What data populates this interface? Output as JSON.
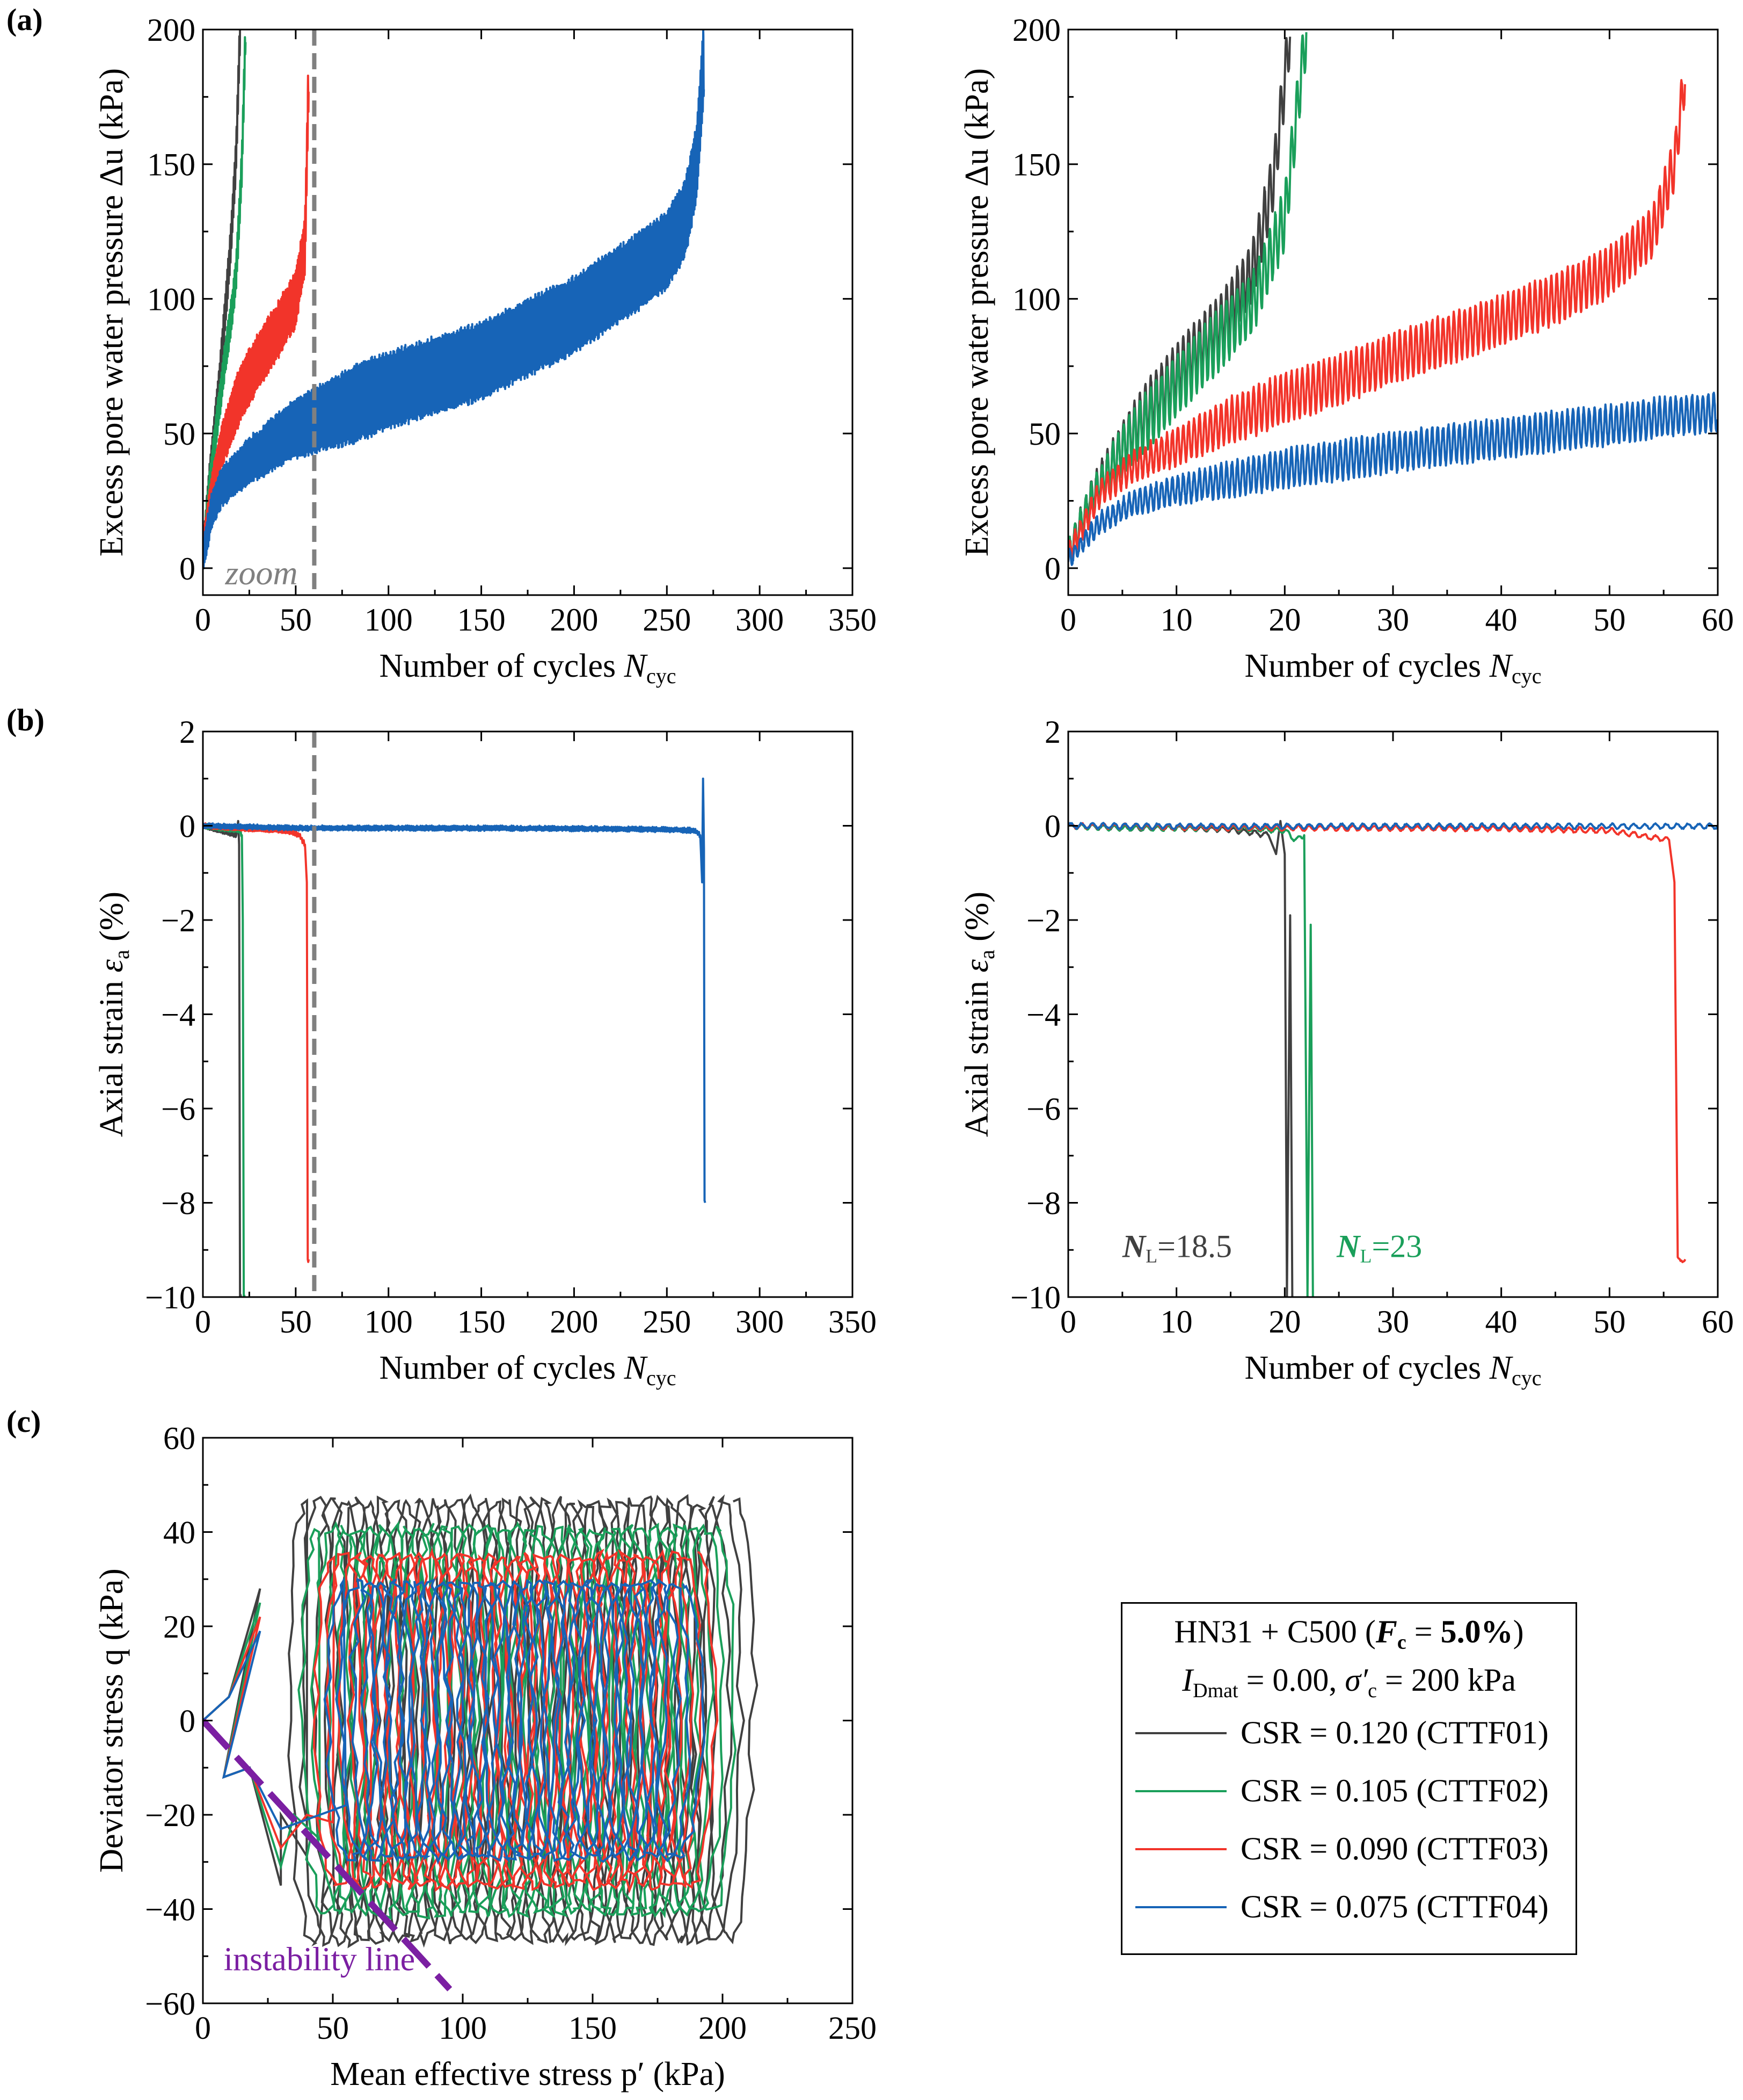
{
  "panel_labels": {
    "a": "(a)",
    "b": "(b)",
    "c": "(c)"
  },
  "annotations": {
    "zoom": "zoom",
    "nl_text_1": "=18.5",
    "nl_text_2": "=23",
    "nl_symbol": "N",
    "nl_sub": "L",
    "instability": "instability line"
  },
  "legend": {
    "title_line1": "HN31 + C500 (F<sub>c</sub> = 5.0%)",
    "title_line2": "I<sub>Dmat</sub> = 0.00, σ′<sub>c</sub> = 200 kPa",
    "entries": [
      {
        "label": "CSR = 0.120 (CTTF01)",
        "color": "#404040"
      },
      {
        "label": "CSR = 0.105 (CTTF02)",
        "color": "#1a9f5a"
      },
      {
        "label": "CSR = 0.090 (CTTF03)",
        "color": "#f2342a"
      },
      {
        "label": "CSR = 0.075 (CTTF04)",
        "color": "#1764b7"
      }
    ]
  },
  "chart_data": [
    {
      "id": "a-left",
      "type": "line",
      "xlabel": "Number of cycles N_cyc",
      "ylabel": "Excess pore water pressure Δu (kPa)",
      "xlim": [
        0,
        350
      ],
      "ylim": [
        -10,
        200
      ],
      "xticks": [
        0,
        50,
        100,
        150,
        200,
        250,
        300,
        350
      ],
      "yticks": [
        0,
        50,
        100,
        150,
        200
      ],
      "vline": 60,
      "series": [
        {
          "name": "CSR = 0.120 (CTTF01)",
          "color": "#404040",
          "x": [
            0,
            3,
            6,
            9,
            12,
            15,
            18,
            20
          ],
          "y_mean": [
            5,
            30,
            50,
            70,
            95,
            120,
            155,
            200
          ],
          "amplitude": 6
        },
        {
          "name": "CSR = 0.105 (CTTF02)",
          "color": "#1a9f5a",
          "x": [
            0,
            3,
            6,
            9,
            12,
            15,
            18,
            21,
            23
          ],
          "y_mean": [
            5,
            28,
            45,
            62,
            78,
            92,
            110,
            150,
            200
          ],
          "amplitude": 6
        },
        {
          "name": "CSR = 0.090 (CTTF03)",
          "color": "#f2342a",
          "x": [
            0,
            5,
            10,
            20,
            30,
            40,
            50,
            55,
            57
          ],
          "y_mean": [
            8,
            30,
            45,
            65,
            77,
            88,
            100,
            120,
            184
          ],
          "amplitude": 10
        },
        {
          "name": "CSR = 0.075 (CTTF04)",
          "color": "#1764b7",
          "x": [
            0,
            5,
            10,
            25,
            50,
            75,
            100,
            150,
            200,
            230,
            250,
            260,
            266,
            270
          ],
          "y_mean": [
            4,
            22,
            30,
            40,
            52,
            59,
            66,
            77,
            94,
            108,
            118,
            130,
            150,
            190
          ],
          "amplitude": 14
        }
      ]
    },
    {
      "id": "a-right",
      "type": "line",
      "xlabel": "Number of cycles N_cyc",
      "ylabel": "Excess pore water pressure Δu (kPa)",
      "xlim": [
        0,
        60
      ],
      "ylim": [
        -10,
        200
      ],
      "xticks": [
        0,
        10,
        20,
        30,
        40,
        50,
        60
      ],
      "yticks": [
        0,
        50,
        100,
        150,
        200
      ],
      "series": [
        {
          "name": "CSR = 0.120 (CTTF01)",
          "color": "#404040",
          "x": [
            0,
            2,
            5,
            8,
            11,
            14,
            17,
            19,
            20.5
          ],
          "y_mean": [
            5,
            25,
            45,
            62,
            77,
            90,
            110,
            145,
            200
          ],
          "amplitude": 11
        },
        {
          "name": "CSR = 0.105 (CTTF02)",
          "color": "#1a9f5a",
          "x": [
            0,
            2,
            5,
            8,
            11,
            14,
            17,
            20,
            22
          ],
          "y_mean": [
            5,
            24,
            44,
            58,
            72,
            85,
            98,
            130,
            200
          ],
          "amplitude": 11
        },
        {
          "name": "CSR = 0.090 (CTTF03)",
          "color": "#f2342a",
          "x": [
            0,
            3,
            6,
            10,
            15,
            20,
            25,
            30,
            35,
            40,
            45,
            50,
            54,
            56,
            57
          ],
          "y_mean": [
            5,
            28,
            38,
            45,
            55,
            63,
            70,
            78,
            85,
            92,
            100,
            110,
            125,
            150,
            184
          ],
          "amplitude": 9
        },
        {
          "name": "CSR = 0.075 (CTTF04)",
          "color": "#1764b7",
          "x": [
            0,
            3,
            6,
            10,
            15,
            20,
            25,
            30,
            35,
            40,
            45,
            50,
            55,
            60
          ],
          "y_mean": [
            3,
            17,
            24,
            29,
            33,
            37,
            40,
            43,
            46,
            48,
            51,
            53,
            56,
            58
          ],
          "amplitude": 7
        }
      ]
    },
    {
      "id": "b-left",
      "type": "line",
      "xlabel": "Number of cycles N_cyc",
      "ylabel": "Axial strain ε_a (%)",
      "xlim": [
        0,
        350
      ],
      "ylim": [
        -10,
        2
      ],
      "xticks": [
        0,
        50,
        100,
        150,
        200,
        250,
        300,
        350
      ],
      "yticks": [
        -10,
        -8,
        -6,
        -4,
        -2,
        0,
        2
      ],
      "vline": 60,
      "series": [
        {
          "name": "CSR = 0.120 (CTTF01)",
          "color": "#404040",
          "x": [
            0,
            10,
            18,
            19,
            19.5,
            20,
            20.5
          ],
          "y": [
            0,
            -0.1,
            -0.2,
            0.1,
            -0.4,
            -10,
            -10
          ]
        },
        {
          "name": "CSR = 0.105 (CTTF02)",
          "color": "#1a9f5a",
          "x": [
            0,
            10,
            20,
            21,
            21.5,
            22,
            22.5
          ],
          "y": [
            0,
            -0.05,
            -0.1,
            -0.2,
            -2,
            -10,
            -10
          ]
        },
        {
          "name": "CSR = 0.090 (CTTF03)",
          "color": "#f2342a",
          "x": [
            0,
            20,
            45,
            52,
            55,
            56,
            56.5,
            57
          ],
          "y": [
            0,
            -0.05,
            -0.1,
            -0.2,
            -0.4,
            -1.2,
            -9.2,
            -9.2
          ]
        },
        {
          "name": "CSR = 0.075 (CTTF04)",
          "color": "#1764b7",
          "x": [
            0,
            50,
            100,
            150,
            200,
            250,
            265,
            268,
            269,
            269.5,
            270,
            270.3,
            270.6
          ],
          "y": [
            0,
            -0.05,
            -0.05,
            -0.05,
            -0.06,
            -0.08,
            -0.1,
            -0.2,
            -1.2,
            1.0,
            -0.5,
            -8,
            -8
          ]
        }
      ]
    },
    {
      "id": "b-right",
      "type": "line",
      "xlabel": "Number of cycles N_cyc",
      "ylabel": "Axial strain ε_a (%)",
      "xlim": [
        0,
        60
      ],
      "ylim": [
        -10,
        2
      ],
      "xticks": [
        0,
        10,
        20,
        30,
        40,
        50,
        60
      ],
      "yticks": [
        -10,
        -8,
        -6,
        -4,
        -2,
        0,
        2
      ],
      "series": [
        {
          "name": "CSR = 0.120 (CTTF01)",
          "color": "#404040",
          "x": [
            0,
            5,
            10,
            15,
            18.5,
            19.2,
            19.6,
            20,
            20.2,
            20.5,
            20.7
          ],
          "y": [
            0,
            -0.05,
            -0.05,
            -0.08,
            -0.2,
            -0.6,
            0.1,
            -0.6,
            -10,
            -1.9,
            -10
          ]
        },
        {
          "name": "CSR = 0.105 (CTTF02)",
          "color": "#1a9f5a",
          "x": [
            0,
            5,
            10,
            15,
            20,
            21,
            21.8,
            22.1,
            22.4,
            22.6
          ],
          "y": [
            0,
            -0.05,
            -0.05,
            -0.05,
            -0.1,
            -0.3,
            -0.2,
            -10,
            -2.1,
            -10
          ]
        },
        {
          "name": "CSR = 0.090 (CTTF03)",
          "color": "#f2342a",
          "x": [
            0,
            10,
            20,
            30,
            40,
            50,
            54,
            55.5,
            56,
            56.3,
            57
          ],
          "y": [
            0,
            -0.03,
            -0.05,
            -0.05,
            -0.06,
            -0.1,
            -0.25,
            -0.3,
            -1.2,
            -9.2,
            -9.2
          ]
        },
        {
          "name": "CSR = 0.075 (CTTF04)",
          "color": "#1764b7",
          "x": [
            0,
            10,
            20,
            30,
            40,
            50,
            60
          ],
          "y": [
            0,
            -0.01,
            -0.01,
            -0.01,
            -0.01,
            -0.01,
            -0.01
          ]
        }
      ]
    },
    {
      "id": "c",
      "type": "line",
      "xlabel": "Mean effective stress p′ (kPa)",
      "ylabel": "Deviator stress q (kPa)",
      "xlim": [
        0,
        250
      ],
      "ylim": [
        -60,
        60
      ],
      "xticks": [
        0,
        50,
        100,
        150,
        200,
        250
      ],
      "yticks": [
        -60,
        -40,
        -20,
        0,
        20,
        40,
        60
      ],
      "instability_line": {
        "x": [
          0,
          95
        ],
        "y": [
          0,
          -57
        ],
        "color": "#7b1fa2"
      },
      "series": [
        {
          "name": "CSR = 0.120 (CTTF01)",
          "color": "#404040",
          "p_range": [
            40,
            205
          ],
          "q_amp": 48
        },
        {
          "name": "CSR = 0.105 (CTTF02)",
          "color": "#1a9f5a",
          "p_range": [
            45,
            198
          ],
          "q_amp": 42
        },
        {
          "name": "CSR = 0.090 (CTTF03)",
          "color": "#f2342a",
          "p_range": [
            50,
            190
          ],
          "q_amp": 36
        },
        {
          "name": "CSR = 0.075 (CTTF04)",
          "color": "#1764b7",
          "p_range": [
            55,
            185
          ],
          "q_amp": 30
        }
      ]
    }
  ]
}
